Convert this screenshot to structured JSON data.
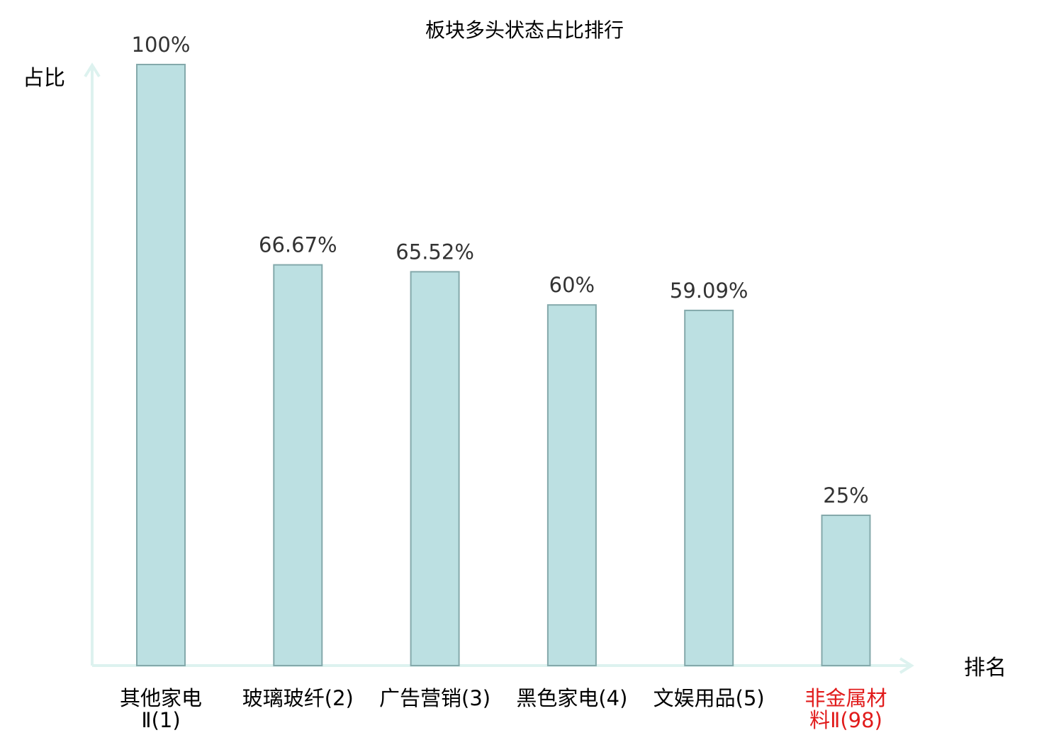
{
  "chart_data": {
    "type": "bar",
    "title": "板块多头状态占比排行",
    "ylabel": "占比",
    "xlabel": "排名",
    "categories": [
      [
        "其他家电",
        "Ⅱ(1)"
      ],
      [
        "玻璃玻纤(2)"
      ],
      [
        "广告营销(3)"
      ],
      [
        "黑色家电(4)"
      ],
      [
        "文娱用品(5)"
      ],
      [
        "非金属材",
        "料Ⅱ(98)"
      ]
    ],
    "values": [
      100,
      66.67,
      65.52,
      60,
      59.09,
      25
    ],
    "value_labels": [
      "100%",
      "66.67%",
      "65.52%",
      "60%",
      "59.09%",
      "25%"
    ],
    "highlighted_category_index": 5,
    "ylim": [
      0,
      100
    ],
    "grid": false,
    "legend": "none",
    "colors": {
      "bar_fill": "#bce0e2",
      "bar_stroke": "#84a9ab",
      "axis": "#ddf2ef",
      "text": "#333333",
      "title": "#000000",
      "highlight": "#e11b1b"
    }
  }
}
